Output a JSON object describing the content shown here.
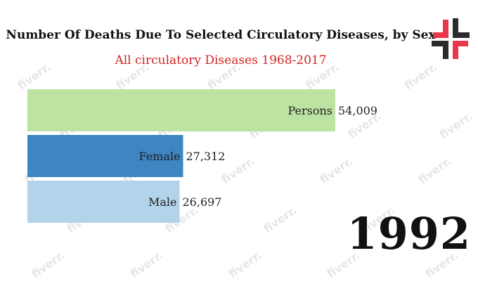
{
  "chart_data": {
    "type": "bar",
    "orientation": "horizontal",
    "title": "Number Of Deaths Due To Selected Circulatory Diseases, by Sex",
    "subtitle": "All circulatory Diseases 1968-2017",
    "year": "1992",
    "categories": [
      "Persons",
      "Female",
      "Male"
    ],
    "values": [
      54009,
      27312,
      26697
    ],
    "value_labels": [
      "54,009",
      "27,312",
      "26,697"
    ],
    "colors": [
      "#bde3a3",
      "#3d86c1",
      "#b2d3ea"
    ],
    "xlim": [
      0,
      54009
    ],
    "grid": false,
    "legend": "none"
  },
  "logo": {
    "colors": [
      "#e8364a",
      "#2b2b2b"
    ]
  },
  "watermark": "fiverr."
}
